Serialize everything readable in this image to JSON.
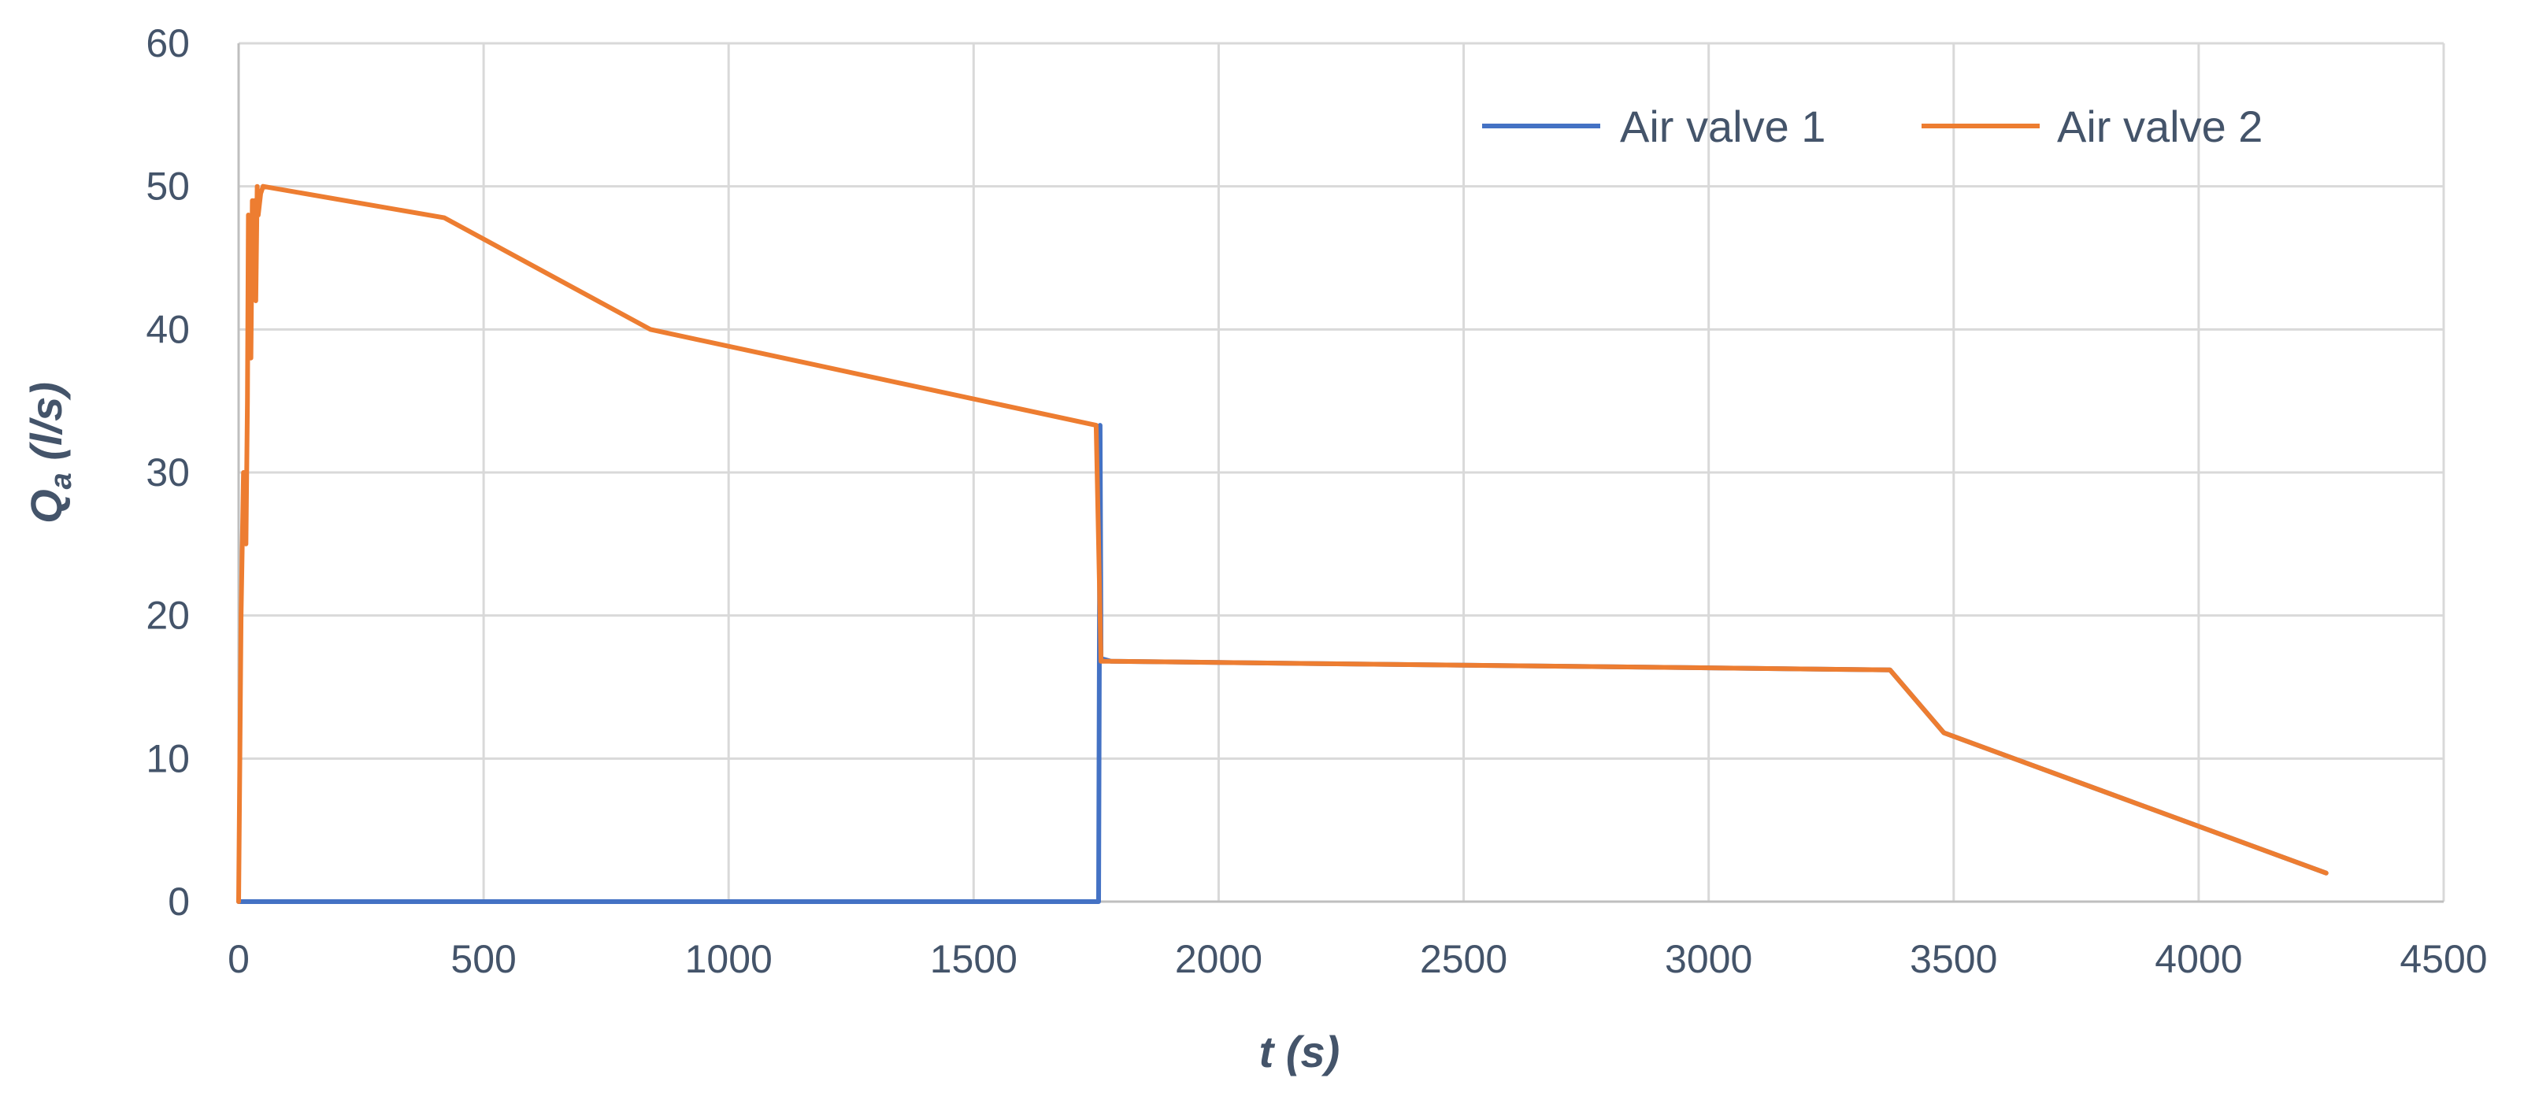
{
  "chart_data": {
    "type": "line",
    "title": "",
    "xlabel": "t (s)",
    "ylabel": "Qa (l/s)",
    "ylabel_main": "Q",
    "ylabel_sub": "a",
    "ylabel_unit": "(l/s)",
    "xlim": [
      0,
      4500
    ],
    "ylim": [
      0,
      60
    ],
    "xticks": [
      0,
      500,
      1000,
      1500,
      2000,
      2500,
      3000,
      3500,
      4000,
      4500
    ],
    "yticks": [
      0,
      10,
      20,
      30,
      40,
      50,
      60
    ],
    "grid": true,
    "legend_position": "top-right",
    "series": [
      {
        "name": "Air valve 1",
        "color": "#4472c4",
        "x": [
          0,
          10,
          1755,
          1758,
          1760,
          1780,
          3370,
          3480,
          4260
        ],
        "y": [
          0,
          0,
          0,
          33.3,
          17.0,
          16.8,
          16.2,
          11.8,
          2.0
        ]
      },
      {
        "name": "Air valve 2",
        "color": "#ed7d31",
        "x": [
          0,
          5,
          10,
          15,
          18,
          20,
          22,
          25,
          28,
          30,
          32,
          35,
          38,
          40,
          45,
          50,
          420,
          840,
          1750,
          1760,
          1780,
          3370,
          3480,
          4260
        ],
        "y": [
          0,
          20,
          30,
          25,
          35,
          48,
          42,
          38,
          49,
          46,
          49,
          42,
          50,
          48,
          49.5,
          50,
          47.8,
          40,
          33.3,
          16.8,
          16.8,
          16.2,
          11.8,
          2.0
        ]
      }
    ]
  }
}
